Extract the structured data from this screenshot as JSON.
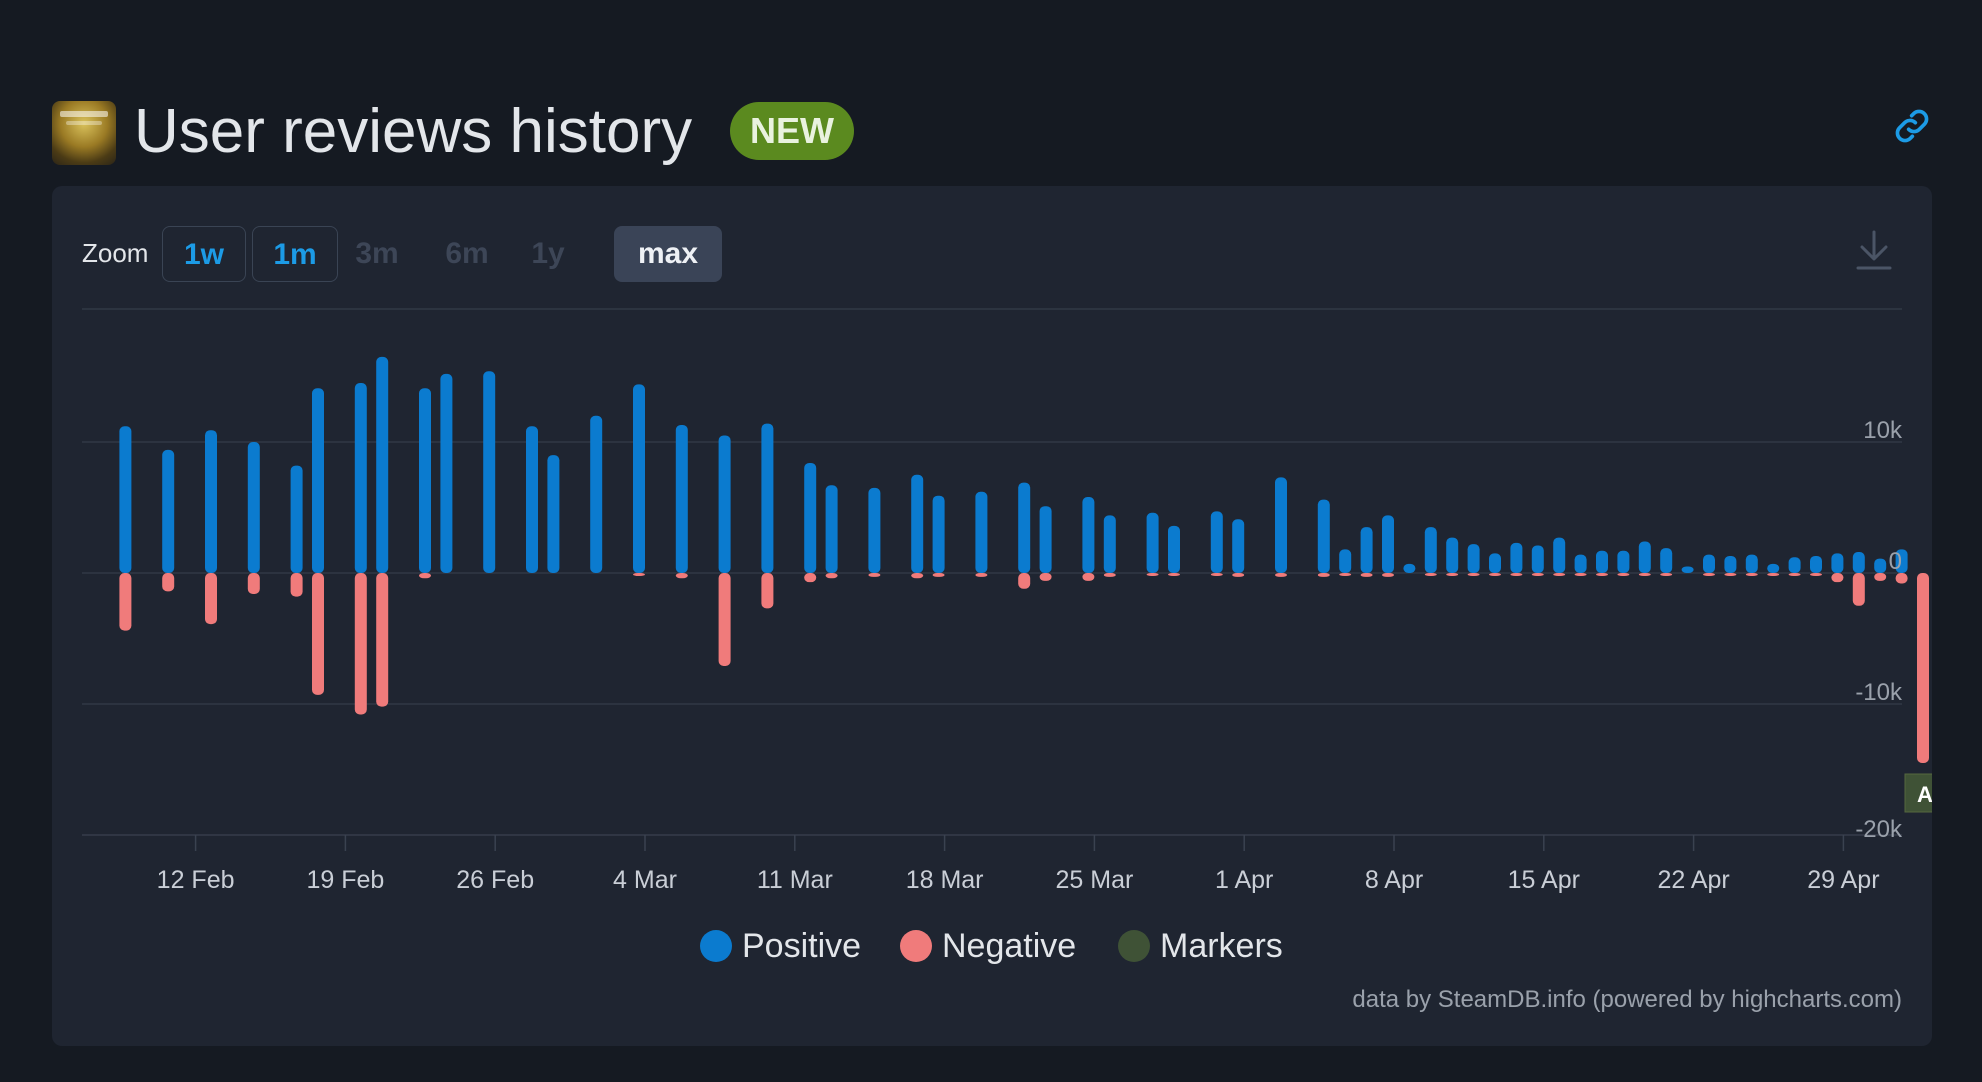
{
  "header": {
    "title": "User reviews history",
    "badge": "NEW"
  },
  "toolbar": {
    "zoom_label": "Zoom",
    "zoom_options": [
      "1w",
      "1m",
      "3m",
      "6m",
      "1y",
      "max"
    ],
    "selected_zoom": "max"
  },
  "colors": {
    "positive": "#0b7bcf",
    "negative": "#f07b7b",
    "markers": "#3f5236",
    "badge": "#5b8a1f",
    "accent": "#1c9be6"
  },
  "legend": {
    "positive": "Positive",
    "negative": "Negative",
    "markers": "Markers"
  },
  "credits": "data by SteamDB.info (powered by highcharts.com)",
  "chart_data": {
    "type": "bar",
    "x_ticks": [
      "12 Feb",
      "19 Feb",
      "26 Feb",
      "4 Mar",
      "11 Mar",
      "18 Mar",
      "25 Mar",
      "1 Apr",
      "8 Apr",
      "15 Apr",
      "22 Apr",
      "29 Apr"
    ],
    "y_ticks": [
      "10k",
      "0",
      "-10k",
      "-20k"
    ],
    "ylim": [
      -20000,
      16500
    ],
    "x_start": "2024-02-08",
    "grid": true,
    "legend_position": "bottom-center",
    "series": [
      {
        "name": "Positive",
        "points": [
          {
            "date": "2024-02-09",
            "value": 11200
          },
          {
            "date": "2024-02-11",
            "value": 9400
          },
          {
            "date": "2024-02-13",
            "value": 10900
          },
          {
            "date": "2024-02-15",
            "value": 10000
          },
          {
            "date": "2024-02-17",
            "value": 8200
          },
          {
            "date": "2024-02-18",
            "value": 14100
          },
          {
            "date": "2024-02-20",
            "value": 14500
          },
          {
            "date": "2024-02-21",
            "value": 16500
          },
          {
            "date": "2024-02-23",
            "value": 14100
          },
          {
            "date": "2024-02-24",
            "value": 15200
          },
          {
            "date": "2024-02-26",
            "value": 15400
          },
          {
            "date": "2024-02-28",
            "value": 11200
          },
          {
            "date": "2024-02-29",
            "value": 9000
          },
          {
            "date": "2024-03-02",
            "value": 12000
          },
          {
            "date": "2024-03-04",
            "value": 14400
          },
          {
            "date": "2024-03-06",
            "value": 11300
          },
          {
            "date": "2024-03-08",
            "value": 10500
          },
          {
            "date": "2024-03-10",
            "value": 11400
          },
          {
            "date": "2024-03-12",
            "value": 8400
          },
          {
            "date": "2024-03-13",
            "value": 6700
          },
          {
            "date": "2024-03-15",
            "value": 6500
          },
          {
            "date": "2024-03-17",
            "value": 7500
          },
          {
            "date": "2024-03-18",
            "value": 5900
          },
          {
            "date": "2024-03-20",
            "value": 6200
          },
          {
            "date": "2024-03-22",
            "value": 6900
          },
          {
            "date": "2024-03-23",
            "value": 5100
          },
          {
            "date": "2024-03-25",
            "value": 5800
          },
          {
            "date": "2024-03-26",
            "value": 4400
          },
          {
            "date": "2024-03-28",
            "value": 4600
          },
          {
            "date": "2024-03-29",
            "value": 3600
          },
          {
            "date": "2024-03-31",
            "value": 4700
          },
          {
            "date": "2024-04-01",
            "value": 4100
          },
          {
            "date": "2024-04-03",
            "value": 7300
          },
          {
            "date": "2024-04-05",
            "value": 5600
          },
          {
            "date": "2024-04-06",
            "value": 1800
          },
          {
            "date": "2024-04-07",
            "value": 3500
          },
          {
            "date": "2024-04-08",
            "value": 4400
          },
          {
            "date": "2024-04-09",
            "value": 700
          },
          {
            "date": "2024-04-10",
            "value": 3500
          },
          {
            "date": "2024-04-11",
            "value": 2700
          },
          {
            "date": "2024-04-12",
            "value": 2200
          },
          {
            "date": "2024-04-13",
            "value": 1500
          },
          {
            "date": "2024-04-14",
            "value": 2300
          },
          {
            "date": "2024-04-15",
            "value": 2100
          },
          {
            "date": "2024-04-16",
            "value": 2700
          },
          {
            "date": "2024-04-17",
            "value": 1400
          },
          {
            "date": "2024-04-18",
            "value": 1700
          },
          {
            "date": "2024-04-19",
            "value": 1700
          },
          {
            "date": "2024-04-20",
            "value": 2400
          },
          {
            "date": "2024-04-21",
            "value": 1900
          },
          {
            "date": "2024-04-22",
            "value": 500
          },
          {
            "date": "2024-04-23",
            "value": 1400
          },
          {
            "date": "2024-04-24",
            "value": 1300
          },
          {
            "date": "2024-04-25",
            "value": 1400
          },
          {
            "date": "2024-04-26",
            "value": 700
          },
          {
            "date": "2024-04-27",
            "value": 1200
          },
          {
            "date": "2024-04-28",
            "value": 1300
          },
          {
            "date": "2024-04-29",
            "value": 1500
          },
          {
            "date": "2024-04-30",
            "value": 1600
          },
          {
            "date": "2024-05-01",
            "value": 1100
          },
          {
            "date": "2024-05-02",
            "value": 1800
          }
        ]
      },
      {
        "name": "Negative",
        "points": [
          {
            "date": "2024-02-09",
            "value": -4400
          },
          {
            "date": "2024-02-11",
            "value": -1400
          },
          {
            "date": "2024-02-13",
            "value": -3900
          },
          {
            "date": "2024-02-15",
            "value": -1600
          },
          {
            "date": "2024-02-17",
            "value": -1800
          },
          {
            "date": "2024-02-18",
            "value": -9300
          },
          {
            "date": "2024-02-20",
            "value": -10800
          },
          {
            "date": "2024-02-21",
            "value": -10200
          },
          {
            "date": "2024-02-23",
            "value": -400
          },
          {
            "date": "2024-03-04",
            "value": -100
          },
          {
            "date": "2024-03-06",
            "value": -400
          },
          {
            "date": "2024-03-08",
            "value": -7100
          },
          {
            "date": "2024-03-10",
            "value": -2700
          },
          {
            "date": "2024-03-12",
            "value": -700
          },
          {
            "date": "2024-03-13",
            "value": -400
          },
          {
            "date": "2024-03-15",
            "value": -300
          },
          {
            "date": "2024-03-17",
            "value": -400
          },
          {
            "date": "2024-03-18",
            "value": -300
          },
          {
            "date": "2024-03-20",
            "value": -300
          },
          {
            "date": "2024-03-22",
            "value": -1200
          },
          {
            "date": "2024-03-23",
            "value": -600
          },
          {
            "date": "2024-03-25",
            "value": -600
          },
          {
            "date": "2024-03-26",
            "value": -300
          },
          {
            "date": "2024-03-28",
            "value": -100
          },
          {
            "date": "2024-03-29",
            "value": -100
          },
          {
            "date": "2024-03-31",
            "value": -100
          },
          {
            "date": "2024-04-01",
            "value": -300
          },
          {
            "date": "2024-04-03",
            "value": -300
          },
          {
            "date": "2024-04-05",
            "value": -300
          },
          {
            "date": "2024-04-06",
            "value": -100
          },
          {
            "date": "2024-04-07",
            "value": -300
          },
          {
            "date": "2024-04-08",
            "value": -300
          },
          {
            "date": "2024-04-10",
            "value": -100
          },
          {
            "date": "2024-04-11",
            "value": -100
          },
          {
            "date": "2024-04-12",
            "value": -100
          },
          {
            "date": "2024-04-13",
            "value": -100
          },
          {
            "date": "2024-04-14",
            "value": -100
          },
          {
            "date": "2024-04-15",
            "value": -100
          },
          {
            "date": "2024-04-16",
            "value": -100
          },
          {
            "date": "2024-04-17",
            "value": -100
          },
          {
            "date": "2024-04-18",
            "value": -100
          },
          {
            "date": "2024-04-19",
            "value": -100
          },
          {
            "date": "2024-04-20",
            "value": -100
          },
          {
            "date": "2024-04-21",
            "value": -100
          },
          {
            "date": "2024-04-23",
            "value": -100
          },
          {
            "date": "2024-04-24",
            "value": -100
          },
          {
            "date": "2024-04-25",
            "value": -100
          },
          {
            "date": "2024-04-26",
            "value": -100
          },
          {
            "date": "2024-04-27",
            "value": -100
          },
          {
            "date": "2024-04-28",
            "value": -100
          },
          {
            "date": "2024-04-29",
            "value": -700
          },
          {
            "date": "2024-04-30",
            "value": -2500
          },
          {
            "date": "2024-05-01",
            "value": -600
          },
          {
            "date": "2024-05-02",
            "value": -800
          },
          {
            "date": "2024-05-03",
            "value": -14500
          }
        ]
      }
    ],
    "markers": [
      {
        "label": "A",
        "date": "2024-05-03"
      }
    ]
  }
}
